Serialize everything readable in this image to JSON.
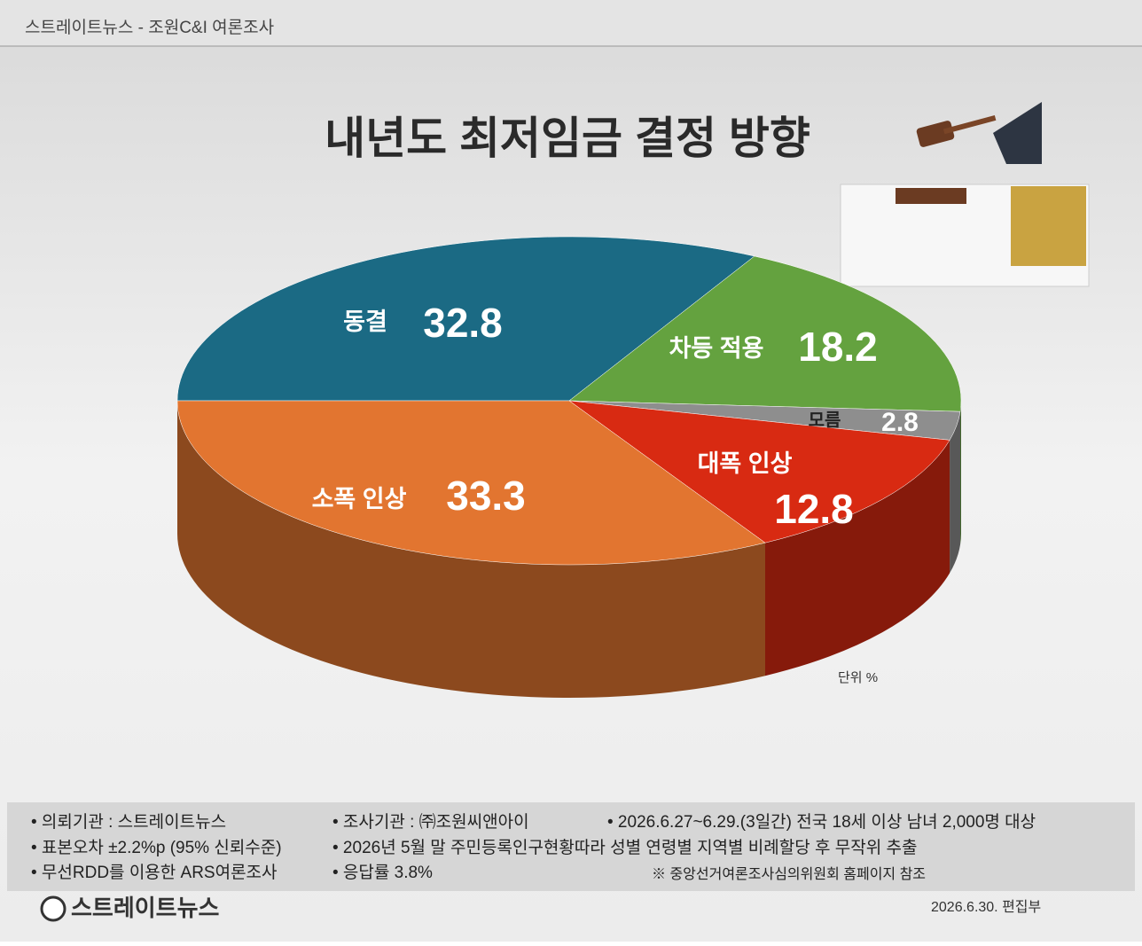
{
  "header": "스트레이트뉴스 - 조원C&I 여론조사",
  "chart_data": {
    "type": "pie3d",
    "title": "내년도 최저임금 결정 방향",
    "categories": [
      "동결",
      "차등 적용",
      "모름",
      "대폭 인상",
      "소폭 인상"
    ],
    "values": [
      32.8,
      18.2,
      2.8,
      12.8,
      33.3
    ],
    "colors": [
      "#1b6a84",
      "#64a23f",
      "#8e8e8e",
      "#d82a12",
      "#e27530"
    ],
    "unit_label": "단위 %"
  },
  "footer": {
    "items": [
      "• 의뢰기관 : 스트레이트뉴스",
      "• 조사기관 : ㈜조원씨앤아이",
      "• 2026.6.27~6.29.(3일간) 전국 18세 이상 남녀 2,000명 대상",
      "• 표본오차 ±2.2%p (95% 신뢰수준)",
      "• 2026년 5월 말 주민등록인구현황따라 성별 연령별 지역별 비례할당 후 무작위 추출",
      "• 무선RDD를 이용한 ARS여론조사",
      "• 응답률 3.8%",
      "※ 중앙선거여론조사심의위원회 홈페이지 참조"
    ],
    "logo": "스트레이트뉴스",
    "credit": "2026.6.30.  편집부"
  }
}
